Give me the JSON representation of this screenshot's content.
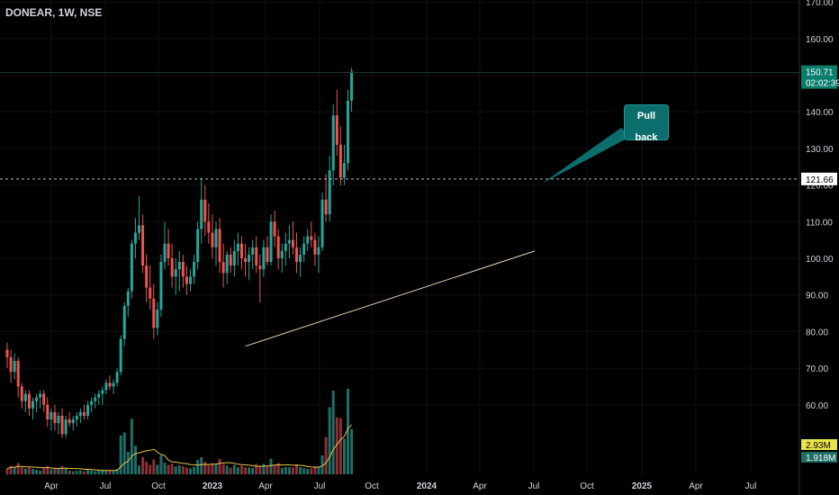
{
  "header": {
    "ticker": "DONEAR, 1W, NSE"
  },
  "annotation": {
    "label": "Pull back"
  },
  "colors": {
    "up": "#26a69a",
    "down": "#ef5350",
    "trendline": "#e8d2b0",
    "callout": "#0c6d6d",
    "ma": "#e8c34a"
  },
  "chart_data": {
    "type": "candlestick",
    "title": "",
    "symbol": "DONEAR",
    "interval": "1W",
    "exchange": "NSE",
    "ylim": [
      48,
      172
    ],
    "y_ticks": [
      "170.00",
      "160.00",
      "150.00",
      "140.00",
      "130.00",
      "120.00",
      "110.00",
      "100.00",
      "90.00",
      "80.00",
      "70.00",
      "60.00"
    ],
    "x_ticks": [
      "Apr",
      "Jul",
      "Oct",
      "2023",
      "Apr",
      "Jul",
      "Oct",
      "2024",
      "Apr",
      "Jul",
      "Oct",
      "2025",
      "Apr",
      "Jul"
    ],
    "last_price": "150.71",
    "countdown": "02:02:39",
    "dashed_level": "121.66",
    "volume_labels": [
      "2.93M",
      "1.918M"
    ],
    "candles": [
      [
        75,
        77,
        70,
        73
      ],
      [
        73,
        75,
        66,
        69
      ],
      [
        69,
        74,
        67,
        72
      ],
      [
        72,
        73,
        62,
        65
      ],
      [
        65,
        66,
        59,
        61
      ],
      [
        61,
        64,
        58,
        63
      ],
      [
        63,
        64,
        57,
        59
      ],
      [
        59,
        62,
        56,
        61
      ],
      [
        61,
        63,
        58,
        62
      ],
      [
        62,
        64,
        59,
        63
      ],
      [
        63,
        64,
        58,
        60
      ],
      [
        60,
        62,
        54,
        56
      ],
      [
        56,
        59,
        53,
        58
      ],
      [
        58,
        60,
        53,
        55
      ],
      [
        55,
        58,
        52,
        57
      ],
      [
        57,
        59,
        51,
        52
      ],
      [
        52,
        57,
        51,
        56
      ],
      [
        56,
        58,
        54,
        55
      ],
      [
        55,
        57,
        53,
        56
      ],
      [
        56,
        58,
        54,
        57
      ],
      [
        57,
        59,
        55,
        58
      ],
      [
        58,
        60,
        56,
        57
      ],
      [
        57,
        61,
        56,
        60
      ],
      [
        60,
        62,
        58,
        61
      ],
      [
        61,
        63,
        59,
        62
      ],
      [
        62,
        64,
        60,
        63
      ],
      [
        63,
        65,
        60,
        64
      ],
      [
        64,
        67,
        63,
        66
      ],
      [
        66,
        68,
        64,
        65
      ],
      [
        65,
        67,
        63,
        66
      ],
      [
        66,
        70,
        65,
        69
      ],
      [
        69,
        79,
        68,
        78
      ],
      [
        78,
        88,
        76,
        87
      ],
      [
        87,
        92,
        84,
        91
      ],
      [
        91,
        105,
        89,
        104
      ],
      [
        104,
        111,
        100,
        107
      ],
      [
        107,
        117,
        105,
        109
      ],
      [
        109,
        112,
        96,
        98
      ],
      [
        98,
        101,
        88,
        92
      ],
      [
        92,
        98,
        86,
        89
      ],
      [
        89,
        93,
        78,
        81
      ],
      [
        81,
        88,
        79,
        86
      ],
      [
        86,
        101,
        84,
        99
      ],
      [
        99,
        110,
        97,
        104
      ],
      [
        104,
        108,
        98,
        100
      ],
      [
        100,
        104,
        92,
        95
      ],
      [
        95,
        100,
        90,
        97
      ],
      [
        97,
        102,
        91,
        99
      ],
      [
        99,
        101,
        92,
        95
      ],
      [
        95,
        98,
        90,
        93
      ],
      [
        93,
        97,
        91,
        95
      ],
      [
        95,
        101,
        93,
        99
      ],
      [
        99,
        110,
        97,
        108
      ],
      [
        108,
        122,
        104,
        116
      ],
      [
        116,
        120,
        106,
        110
      ],
      [
        110,
        115,
        104,
        107
      ],
      [
        107,
        112,
        100,
        103
      ],
      [
        103,
        110,
        98,
        108
      ],
      [
        108,
        111,
        96,
        99
      ],
      [
        99,
        104,
        92,
        96
      ],
      [
        96,
        102,
        93,
        101
      ],
      [
        101,
        103,
        96,
        98
      ],
      [
        98,
        105,
        95,
        102
      ],
      [
        102,
        107,
        98,
        104
      ],
      [
        104,
        106,
        97,
        100
      ],
      [
        100,
        104,
        95,
        99
      ],
      [
        99,
        103,
        94,
        101
      ],
      [
        101,
        105,
        97,
        103
      ],
      [
        103,
        106,
        96,
        98
      ],
      [
        98,
        101,
        88,
        97
      ],
      [
        97,
        105,
        95,
        103
      ],
      [
        103,
        106,
        98,
        99
      ],
      [
        99,
        112,
        98,
        110
      ],
      [
        110,
        113,
        103,
        106
      ],
      [
        106,
        108,
        97,
        100
      ],
      [
        100,
        104,
        96,
        102
      ],
      [
        102,
        107,
        98,
        104
      ],
      [
        104,
        109,
        100,
        105
      ],
      [
        105,
        110,
        101,
        103
      ],
      [
        103,
        107,
        96,
        99
      ],
      [
        99,
        103,
        95,
        101
      ],
      [
        101,
        106,
        99,
        104
      ],
      [
        104,
        108,
        102,
        106
      ],
      [
        106,
        110,
        103,
        105
      ],
      [
        105,
        107,
        98,
        101
      ],
      [
        101,
        106,
        96,
        103
      ],
      [
        103,
        118,
        102,
        116
      ],
      [
        116,
        123,
        110,
        112
      ],
      [
        112,
        128,
        110,
        124
      ],
      [
        124,
        142,
        120,
        139
      ],
      [
        139,
        146,
        128,
        131
      ],
      [
        131,
        136,
        120,
        122
      ],
      [
        122,
        131,
        120,
        126
      ],
      [
        126,
        146,
        124,
        143
      ],
      [
        143,
        152,
        140,
        151
      ]
    ]
  }
}
